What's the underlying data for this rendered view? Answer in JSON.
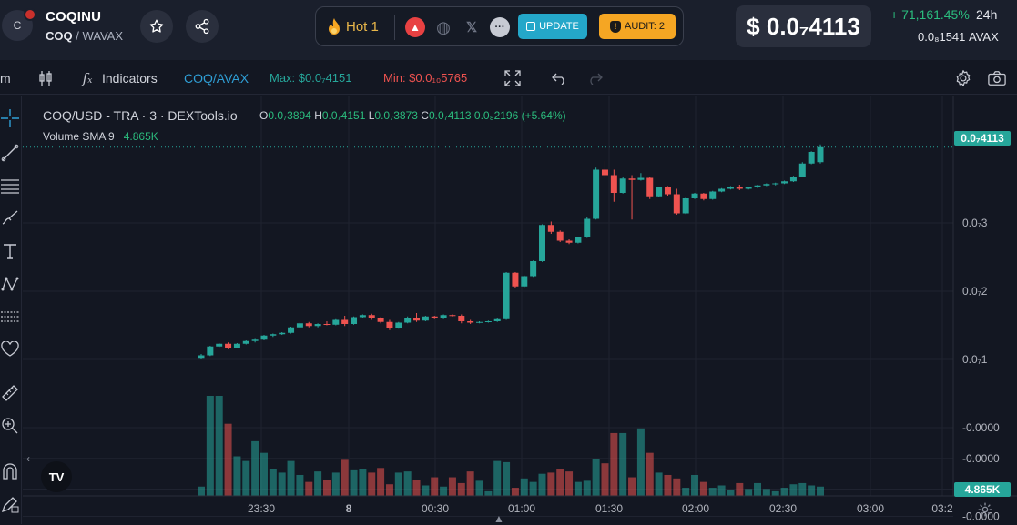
{
  "header": {
    "avatar_letter": "C",
    "token_name": "COQINU",
    "pair_symbol": "COQ",
    "pair_sep": " / ",
    "pair_quote": "WAVAX",
    "hot_label": "Hot 1",
    "update_label": "UPDATE",
    "audit_label": "AUDIT: 2",
    "price": "$ 0.0₇4113",
    "change": "+ 71,161.45%",
    "change_period": "24h",
    "avax_price": "0.0₈1541",
    "avax_unit": "AVAX",
    "icons": [
      "star-icon",
      "share-icon",
      "fire-icon",
      "avalanche-icon",
      "globe-icon",
      "x-twitter-icon",
      "more-icon",
      "edit-icon",
      "shield-warning-icon"
    ]
  },
  "toolbar": {
    "timeframe_partial": "m",
    "indicators_label": "Indicators",
    "pair_label": "COQ/AVAX",
    "max_label": "Max: $0.0₇4151",
    "min_label": "Min: $0.0₁₀5765"
  },
  "legend": {
    "title": "COQ/USD - TRA · 3 · DEXTools.io",
    "o_label": "O",
    "o_value": "0.0₇3894",
    "h_label": "H",
    "h_value": "0.0₇4151",
    "l_label": "L",
    "l_value": "0.0₇3873",
    "c_label": "C",
    "c_value": "0.0₇4113",
    "change_value": "0.0₈2196 (+5.64%)",
    "volume_label": "Volume SMA 9",
    "volume_value": "4.865K"
  },
  "price_axis": {
    "labels": [
      "0.0₇3",
      "0.0₇2",
      "0.0₇1",
      "-0.0000",
      "-0.0000",
      "-0.0000",
      "-0.0000"
    ],
    "current_price_label": "0.0₇4113",
    "current_volume_label": "4.865K"
  },
  "time_axis": {
    "labels": [
      "23:30",
      "8",
      "00:30",
      "01:00",
      "01:30",
      "02:00",
      "02:30",
      "03:00",
      "03:2"
    ]
  },
  "colors": {
    "up": "#26a69a",
    "down": "#ef5350",
    "up_bright": "#2bbd7e",
    "background": "#131722",
    "header": "#1a1f2c",
    "update": "#24a7c9",
    "audit": "#f5a623"
  },
  "chart_data": {
    "type": "candlestick",
    "x": [
      "23:15",
      "23:18",
      "23:21",
      "23:24",
      "23:27",
      "23:30",
      "23:33",
      "23:36",
      "23:39",
      "23:42",
      "23:45",
      "23:48",
      "23:51",
      "23:54",
      "23:57",
      "00:00",
      "00:03",
      "00:06",
      "00:09",
      "00:12",
      "00:15",
      "00:18",
      "00:21",
      "00:24",
      "00:27",
      "00:30",
      "00:33",
      "00:36",
      "00:39",
      "00:42",
      "00:45",
      "00:48",
      "00:51",
      "00:54",
      "00:57",
      "01:00",
      "01:03",
      "01:06",
      "01:09",
      "01:12",
      "01:15",
      "01:18",
      "01:21",
      "01:24",
      "01:27",
      "01:30",
      "01:33",
      "01:36",
      "01:39",
      "01:42",
      "01:45",
      "01:48",
      "01:51",
      "01:54",
      "01:57",
      "02:00",
      "02:03",
      "02:06",
      "02:09",
      "02:12",
      "02:15",
      "02:18",
      "02:21",
      "02:24",
      "02:27",
      "02:30",
      "02:33",
      "02:36",
      "02:39",
      "02:42"
    ],
    "ohlc": [
      [
        1.01,
        1.08,
        1.0,
        1.06
      ],
      [
        1.06,
        1.2,
        1.05,
        1.19
      ],
      [
        1.19,
        1.24,
        1.18,
        1.23
      ],
      [
        1.23,
        1.25,
        1.15,
        1.17
      ],
      [
        1.17,
        1.24,
        1.16,
        1.23
      ],
      [
        1.23,
        1.28,
        1.22,
        1.27
      ],
      [
        1.27,
        1.3,
        1.25,
        1.29
      ],
      [
        1.29,
        1.36,
        1.28,
        1.35
      ],
      [
        1.35,
        1.38,
        1.33,
        1.37
      ],
      [
        1.37,
        1.4,
        1.36,
        1.39
      ],
      [
        1.39,
        1.48,
        1.38,
        1.47
      ],
      [
        1.47,
        1.54,
        1.46,
        1.53
      ],
      [
        1.53,
        1.55,
        1.47,
        1.49
      ],
      [
        1.49,
        1.53,
        1.47,
        1.52
      ],
      [
        1.52,
        1.56,
        1.5,
        1.51
      ],
      [
        1.51,
        1.59,
        1.5,
        1.58
      ],
      [
        1.58,
        1.64,
        1.49,
        1.52
      ],
      [
        1.52,
        1.63,
        1.51,
        1.62
      ],
      [
        1.62,
        1.66,
        1.6,
        1.65
      ],
      [
        1.65,
        1.67,
        1.58,
        1.61
      ],
      [
        1.61,
        1.62,
        1.53,
        1.55
      ],
      [
        1.55,
        1.58,
        1.43,
        1.46
      ],
      [
        1.46,
        1.55,
        1.45,
        1.54
      ],
      [
        1.54,
        1.63,
        1.53,
        1.61
      ],
      [
        1.61,
        1.68,
        1.55,
        1.57
      ],
      [
        1.57,
        1.64,
        1.56,
        1.63
      ],
      [
        1.63,
        1.64,
        1.59,
        1.6
      ],
      [
        1.6,
        1.66,
        1.59,
        1.65
      ],
      [
        1.65,
        1.66,
        1.63,
        1.64
      ],
      [
        1.64,
        1.66,
        1.53,
        1.56
      ],
      [
        1.56,
        1.58,
        1.52,
        1.54
      ],
      [
        1.54,
        1.56,
        1.53,
        1.55
      ],
      [
        1.55,
        1.57,
        1.54,
        1.56
      ],
      [
        1.56,
        1.61,
        1.55,
        1.59
      ],
      [
        1.59,
        2.28,
        1.58,
        2.27
      ],
      [
        2.27,
        2.28,
        2.05,
        2.07
      ],
      [
        2.07,
        2.23,
        2.06,
        2.22
      ],
      [
        2.22,
        2.45,
        2.21,
        2.44
      ],
      [
        2.44,
        2.98,
        2.43,
        2.97
      ],
      [
        2.97,
        3.02,
        2.84,
        2.87
      ],
      [
        2.87,
        2.89,
        2.72,
        2.74
      ],
      [
        2.74,
        2.76,
        2.69,
        2.71
      ],
      [
        2.71,
        2.8,
        2.7,
        2.79
      ],
      [
        2.79,
        3.08,
        2.78,
        3.06
      ],
      [
        3.06,
        3.81,
        3.05,
        3.78
      ],
      [
        3.78,
        3.91,
        3.65,
        3.7
      ],
      [
        3.7,
        3.78,
        3.31,
        3.44
      ],
      [
        3.44,
        3.67,
        3.43,
        3.65
      ],
      [
        3.65,
        3.7,
        3.05,
        3.63
      ],
      [
        3.63,
        3.73,
        3.62,
        3.66
      ],
      [
        3.66,
        3.68,
        3.35,
        3.39
      ],
      [
        3.39,
        3.53,
        3.38,
        3.52
      ],
      [
        3.52,
        3.54,
        3.4,
        3.42
      ],
      [
        3.42,
        3.5,
        3.12,
        3.14
      ],
      [
        3.14,
        3.37,
        3.13,
        3.36
      ],
      [
        3.36,
        3.44,
        3.35,
        3.43
      ],
      [
        3.43,
        3.44,
        3.33,
        3.35
      ],
      [
        3.35,
        3.47,
        3.34,
        3.46
      ],
      [
        3.46,
        3.51,
        3.45,
        3.5
      ],
      [
        3.5,
        3.54,
        3.49,
        3.53
      ],
      [
        3.53,
        3.56,
        3.48,
        3.5
      ],
      [
        3.5,
        3.53,
        3.49,
        3.52
      ],
      [
        3.52,
        3.56,
        3.51,
        3.55
      ],
      [
        3.55,
        3.58,
        3.54,
        3.57
      ],
      [
        3.57,
        3.59,
        3.55,
        3.58
      ],
      [
        3.58,
        3.62,
        3.57,
        3.61
      ],
      [
        3.61,
        3.69,
        3.6,
        3.68
      ],
      [
        3.68,
        3.89,
        3.67,
        3.87
      ],
      [
        3.87,
        4.05,
        3.86,
        4.04
      ],
      [
        3.89,
        4.15,
        3.87,
        4.11
      ]
    ],
    "volume": [
      0.8,
      8.6,
      8.6,
      6.2,
      3.4,
      3.0,
      4.7,
      3.7,
      2.3,
      2.0,
      3.0,
      1.8,
      1.2,
      2.1,
      1.4,
      2.0,
      3.1,
      2.2,
      2.3,
      2.0,
      2.4,
      1.0,
      2.0,
      2.1,
      1.4,
      0.9,
      1.6,
      0.8,
      1.6,
      1.1,
      2.1,
      1.3,
      0.4,
      3.0,
      2.9,
      0.7,
      1.5,
      1.2,
      1.9,
      2.0,
      2.3,
      2.1,
      1.2,
      1.3,
      3.2,
      2.8,
      5.4,
      5.4,
      1.6,
      5.8,
      3.7,
      2.0,
      1.8,
      1.5,
      0.7,
      1.8,
      1.2,
      0.7,
      0.9,
      0.5,
      1.1,
      0.6,
      1.1,
      0.6,
      0.4,
      0.7,
      1.0,
      1.1,
      0.9,
      0.8
    ],
    "ylim": [
      -1.0,
      4.6
    ],
    "xlabel": "",
    "ylabel": ""
  }
}
